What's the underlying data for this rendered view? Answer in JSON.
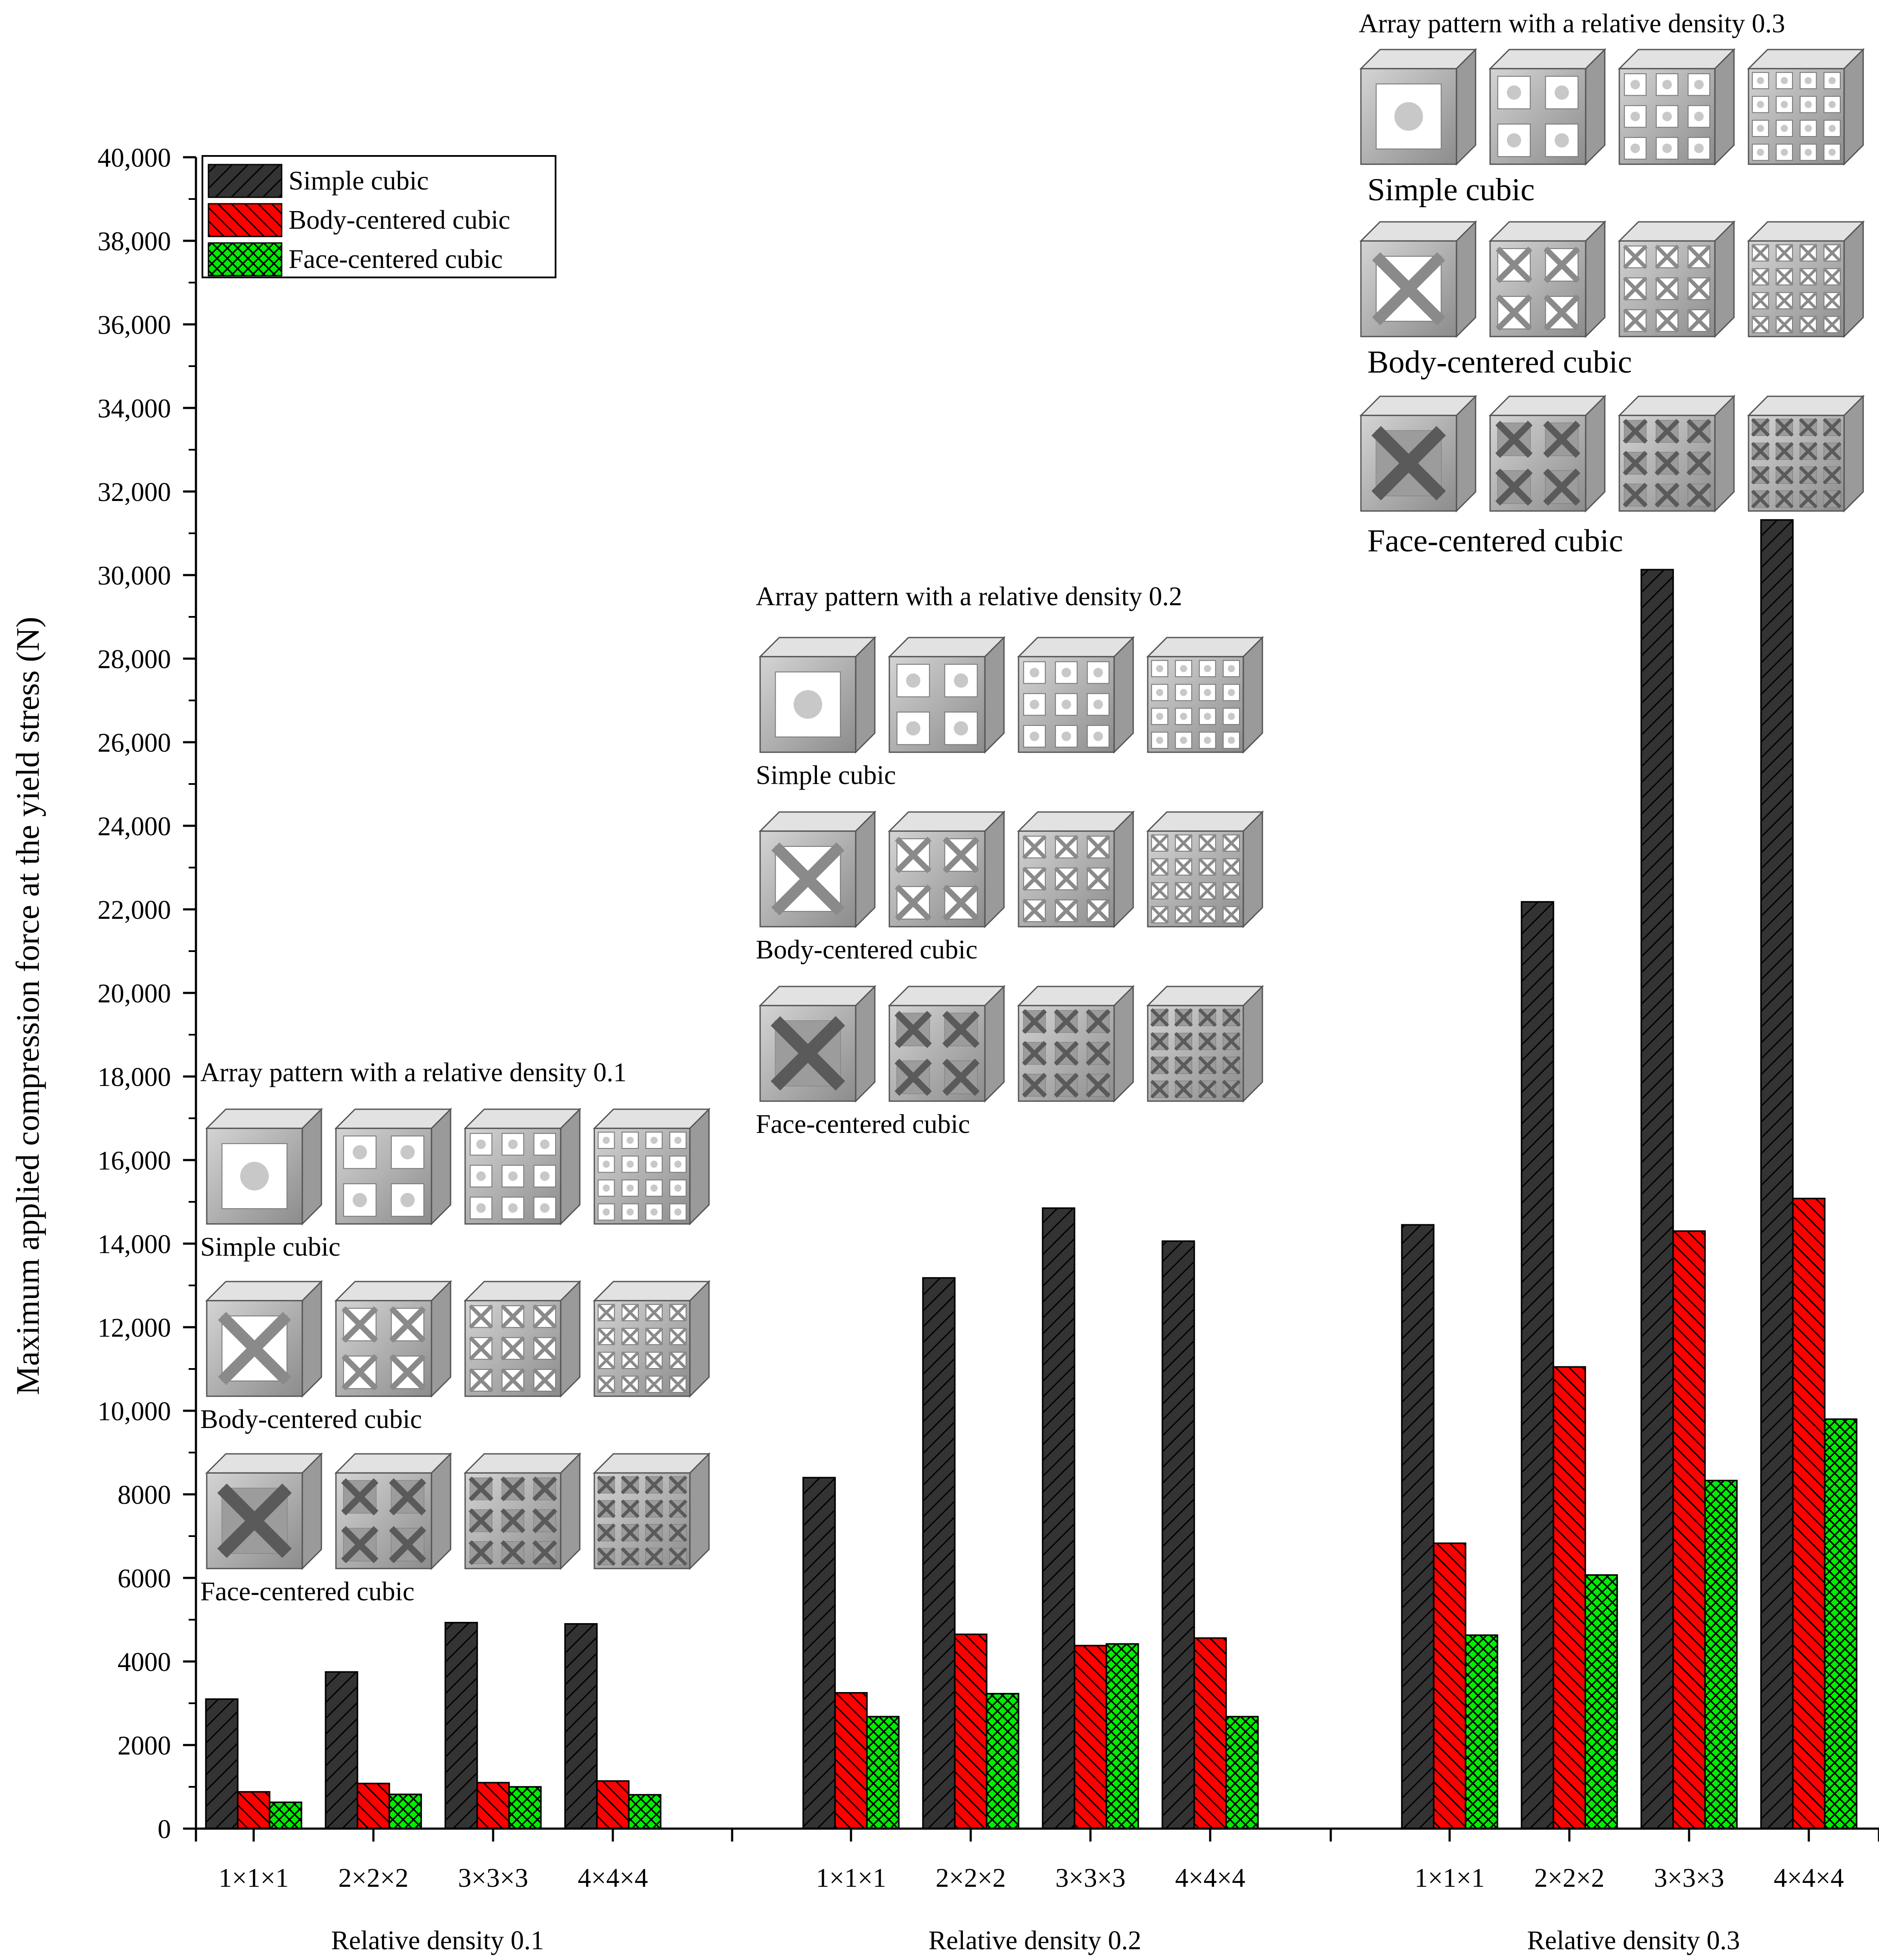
{
  "chart_data": {
    "type": "bar",
    "ylabel": "Maximum applied compression force at the yield stress (N)",
    "ylim": [
      0,
      40000
    ],
    "yticks": [
      {
        "v": 0,
        "label": "0"
      },
      {
        "v": 2000,
        "label": "2000"
      },
      {
        "v": 4000,
        "label": "4000"
      },
      {
        "v": 6000,
        "label": "6000"
      },
      {
        "v": 8000,
        "label": "8000"
      },
      {
        "v": 10000,
        "label": "10,000"
      },
      {
        "v": 12000,
        "label": "12,000"
      },
      {
        "v": 14000,
        "label": "14,000"
      },
      {
        "v": 16000,
        "label": "16,000"
      },
      {
        "v": 18000,
        "label": "18,000"
      },
      {
        "v": 20000,
        "label": "20,000"
      },
      {
        "v": 22000,
        "label": "22,000"
      },
      {
        "v": 24000,
        "label": "24,000"
      },
      {
        "v": 26000,
        "label": "26,000"
      },
      {
        "v": 28000,
        "label": "28,000"
      },
      {
        "v": 30000,
        "label": "30,000"
      },
      {
        "v": 32000,
        "label": "32,000"
      },
      {
        "v": 34000,
        "label": "34,000"
      },
      {
        "v": 36000,
        "label": "36,000"
      },
      {
        "v": 38000,
        "label": "38,000"
      },
      {
        "v": 40000,
        "label": "40,000"
      }
    ],
    "legend_position": "top-left",
    "categories": [
      "1×1×1",
      "2×2×2",
      "3×3×3",
      "4×4×4"
    ],
    "series": [
      {
        "name": "Simple cubic",
        "color": "#333333",
        "pattern": "diagonal"
      },
      {
        "name": "Body-centered cubic",
        "color": "#ff0000",
        "pattern": "diagonal-dense"
      },
      {
        "name": "Face-centered cubic",
        "color": "#00ee00",
        "pattern": "crosshatch"
      }
    ],
    "groups": [
      {
        "label": "Relative density 0.1",
        "values": [
          [
            3100,
            880,
            630
          ],
          [
            3750,
            1080,
            820
          ],
          [
            4930,
            1100,
            1000
          ],
          [
            4900,
            1140,
            810
          ]
        ]
      },
      {
        "label": "Relative density 0.2",
        "values": [
          [
            8400,
            3250,
            2680
          ],
          [
            13180,
            4650,
            3230
          ],
          [
            14850,
            4380,
            4420
          ],
          [
            14060,
            4560,
            2680
          ]
        ]
      },
      {
        "label": "Relative density 0.3",
        "values": [
          [
            14450,
            6830,
            4630
          ],
          [
            22180,
            11050,
            6070
          ],
          [
            30130,
            14300,
            8330
          ],
          [
            31320,
            15080,
            9800
          ]
        ]
      }
    ],
    "insets": [
      {
        "title": "Array pattern with a relative density 0.1",
        "rows": [
          "Simple cubic",
          "Body-centered cubic",
          "Face-centered cubic"
        ]
      },
      {
        "title": "Array pattern with a relative density 0.2",
        "rows": [
          "Simple cubic",
          "Body-centered cubic",
          "Face-centered cubic"
        ]
      },
      {
        "title": "Array pattern with a relative density 0.3",
        "rows": [
          "Simple cubic",
          "Body-centered cubic",
          "Face-centered cubic"
        ]
      }
    ]
  }
}
